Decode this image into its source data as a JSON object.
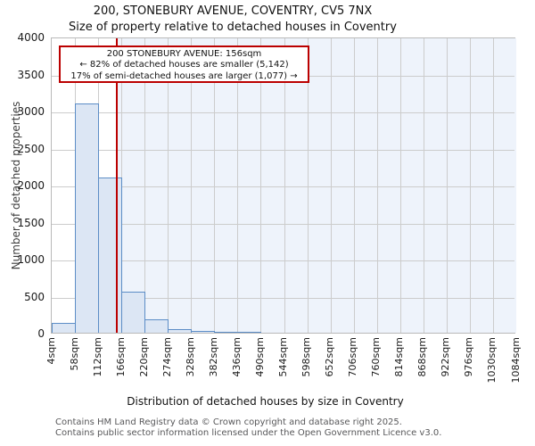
{
  "title": "200, STONEBURY AVENUE, COVENTRY, CV5 7NX",
  "subtitle": "Size of property relative to detached houses in Coventry",
  "annotation": {
    "line1": "200 STONEBURY AVENUE: 156sqm",
    "line2": "← 82% of detached houses are smaller (5,142)",
    "line3": "17% of semi-detached houses are larger (1,077) →"
  },
  "footer": {
    "line1": "Contains HM Land Registry data © Crown copyright and database right 2025.",
    "line2": "Contains public sector information licensed under the Open Government Licence v3.0."
  },
  "chart_data": {
    "type": "bar",
    "title": "200, STONEBURY AVENUE, COVENTRY, CV5 7NX",
    "subtitle": "Size of property relative to detached houses in Coventry",
    "xlabel": "Distribution of detached houses by size in Coventry",
    "ylabel": "Number of detached properties",
    "categories": [
      "4sqm",
      "58sqm",
      "112sqm",
      "166sqm",
      "220sqm",
      "274sqm",
      "328sqm",
      "382sqm",
      "436sqm",
      "490sqm",
      "544sqm",
      "598sqm",
      "652sqm",
      "706sqm",
      "760sqm",
      "814sqm",
      "868sqm",
      "922sqm",
      "976sqm",
      "1030sqm",
      "1084sqm"
    ],
    "values": [
      130,
      3100,
      2100,
      555,
      180,
      45,
      28,
      18,
      10,
      0,
      0,
      0,
      0,
      0,
      0,
      0,
      0,
      0,
      0,
      0
    ],
    "yticks": [
      0,
      500,
      1000,
      1500,
      2000,
      2500,
      3000,
      3500,
      4000
    ],
    "ylim": [
      0,
      4000
    ],
    "grid": true,
    "legend": "none",
    "marker": {
      "value_sqm": 156,
      "bin_start": 4,
      "bin_size": 54,
      "label": "156sqm"
    },
    "colors": {
      "bar_fill": "#dce6f4",
      "bar_edge": "#5c8dc6",
      "marker_line": "#bb0000",
      "annotation_border": "#bb0000",
      "gridline": "#cccccc",
      "shade_right_of_marker": "#eef3fb"
    }
  }
}
